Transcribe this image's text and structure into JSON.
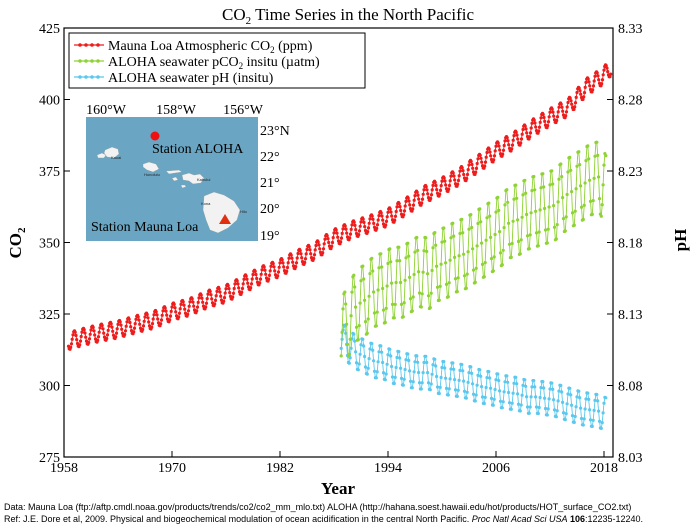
{
  "chart_data": {
    "type": "line",
    "title_pre": "CO",
    "title_sub": "2",
    "title_post": " Time Series in the North Pacific",
    "xlabel": "Year",
    "ylabel_left_pre": "CO",
    "ylabel_left_sub": "2",
    "ylabel_right": "pH",
    "xlim": [
      1958,
      2019
    ],
    "ylim_left": [
      275,
      425
    ],
    "ylim_right": [
      8.03,
      8.33
    ],
    "x_ticks": [
      "1958",
      "1970",
      "1982",
      "1994",
      "2006",
      "2018"
    ],
    "y_ticks_left": [
      "275",
      "300",
      "325",
      "350",
      "375",
      "400",
      "425"
    ],
    "y_ticks_right": [
      "8.03",
      "8.08",
      "8.13",
      "8.18",
      "8.23",
      "8.28",
      "8.33"
    ],
    "grid": false,
    "legend_position": "top-left",
    "series": [
      {
        "name_pre": "Mauna Loa Atmospheric CO",
        "name_sub": "2",
        "name_post": " (ppm)",
        "color": "#ee1c1c",
        "axis": "left",
        "x": [
          1958.5,
          1960,
          1962,
          1964,
          1966,
          1968,
          1970,
          1972,
          1974,
          1976,
          1978,
          1980,
          1982,
          1984,
          1986,
          1988,
          1990,
          1992,
          1994,
          1996,
          1998,
          2000,
          2002,
          2004,
          2006,
          2008,
          2010,
          2012,
          2014,
          2016,
          2018,
          2018.8
        ],
        "values": [
          315.5,
          316.9,
          318.4,
          319.6,
          321.4,
          323.0,
          325.7,
          327.5,
          330.2,
          332.1,
          335.4,
          338.7,
          341.1,
          344.4,
          347.2,
          351.6,
          354.4,
          356.5,
          358.8,
          362.6,
          366.7,
          369.7,
          373.2,
          377.5,
          381.9,
          385.6,
          389.9,
          393.8,
          397.2,
          404.2,
          408.5,
          411.5
        ],
        "seasonal_amplitude": 3
      },
      {
        "name_pre": "ALOHA seawater pCO",
        "name_sub": "2",
        "name_post": " insitu (µatm)",
        "color": "#8fd234",
        "axis": "left",
        "x": [
          1988.8,
          1989.5,
          1990.5,
          1991.5,
          1992.5,
          1993.5,
          1994.5,
          1995.5,
          1996.5,
          1997.5,
          1998.5,
          1999.5,
          2000.5,
          2001.5,
          2002.5,
          2003.5,
          2004.5,
          2005.5,
          2006.5,
          2007.5,
          2008.5,
          2009.5,
          2010.5,
          2011.5,
          2012.5,
          2013.5,
          2014.5,
          2015.5,
          2016.5,
          2017.5,
          2018.2
        ],
        "values": [
          318,
          322,
          328,
          330,
          333,
          334,
          336,
          336,
          338,
          340,
          339,
          342,
          343,
          345,
          346,
          348,
          350,
          352,
          354,
          357,
          358,
          360,
          361,
          362,
          363,
          366,
          368,
          370,
          372,
          373,
          368
        ],
        "seasonal_amplitude": 13
      },
      {
        "name_pre": "ALOHA seawater pH (insitu)",
        "name_sub": "",
        "name_post": "",
        "color": "#5bc8ee",
        "axis": "right",
        "x": [
          1988.8,
          1989.5,
          1990.5,
          1991.5,
          1992.5,
          1993.5,
          1994.5,
          1995.5,
          1996.5,
          1997.5,
          1998.5,
          1999.5,
          2000.5,
          2001.5,
          2002.5,
          2003.5,
          2004.5,
          2005.5,
          2006.5,
          2007.5,
          2008.5,
          2009.5,
          2010.5,
          2011.5,
          2012.5,
          2013.5,
          2014.5,
          2015.5,
          2016.5,
          2017.5,
          2018.2
        ],
        "values": [
          8.113,
          8.108,
          8.103,
          8.1,
          8.097,
          8.096,
          8.093,
          8.092,
          8.09,
          8.089,
          8.089,
          8.086,
          8.085,
          8.084,
          8.083,
          8.081,
          8.079,
          8.078,
          8.076,
          8.075,
          8.074,
          8.072,
          8.072,
          8.071,
          8.07,
          8.068,
          8.066,
          8.064,
          8.063,
          8.062,
          8.06
        ],
        "seasonal_amplitude": 0.012
      }
    ]
  },
  "inset_map": {
    "lon_labels": [
      "160°W",
      "158°W",
      "156°W"
    ],
    "lat_labels": [
      "23°N",
      "22°",
      "21°",
      "20°",
      "19°"
    ],
    "station_aloha_label": "Station ALOHA",
    "station_mauna_loa_label": "Station Mauna Loa",
    "island_labels": [
      "Kauai",
      "Honolulu",
      "Kahului",
      "Kona",
      "Hilo"
    ],
    "ocean_color": "#6aa6c3",
    "land_color": "#f2f2f2",
    "aloha_color": "#ee1111",
    "mauna_loa_color": "#e03010"
  },
  "footer": {
    "line1": "Data: Mauna Loa (ftp://aftp.cmdl.noaa.gov/products/trends/co2/co2_mm_mlo.txt)  ALOHA (http://hahana.soest.hawaii.edu/hot/products/HOT_surface_CO2.txt)",
    "line2_a": "Ref: J.E. Dore et al, 2009. Physical and biogeochemical modulation of ocean acidification in the central North Pacific. ",
    "line2_journal": "Proc Natl Acad Sci USA",
    "line2_volume": " 106",
    "line2_pages": ":12235-12240."
  }
}
